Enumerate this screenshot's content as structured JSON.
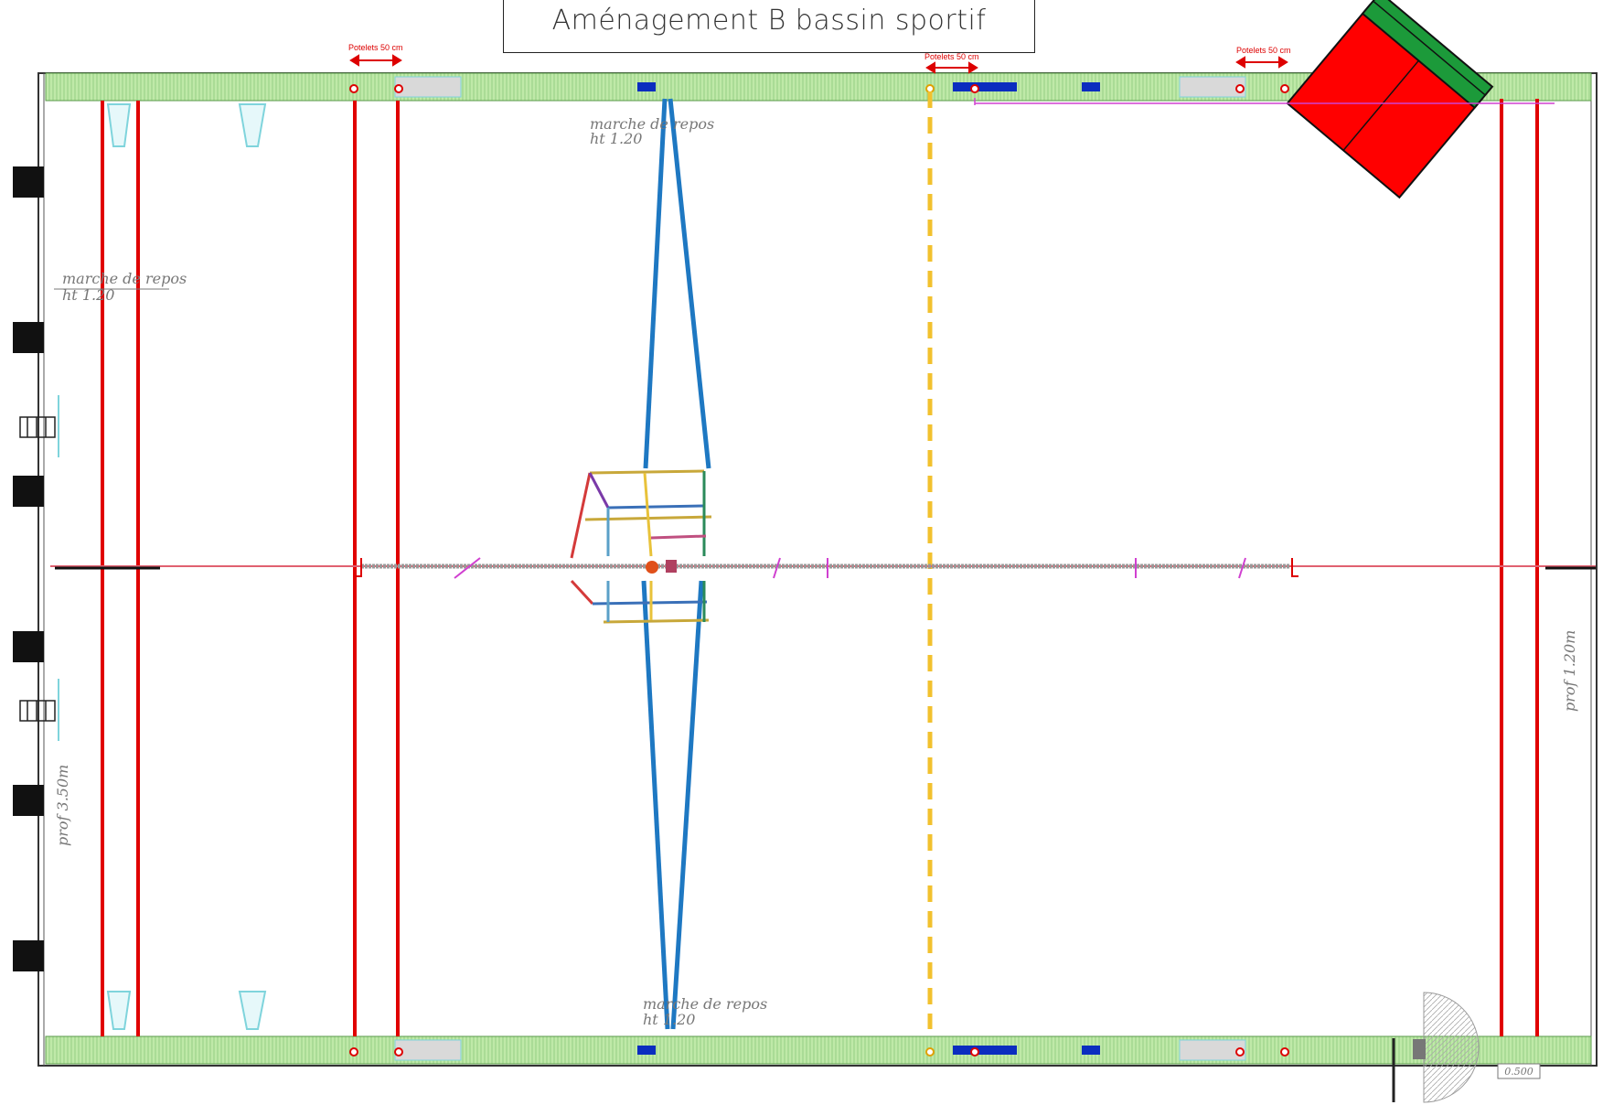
{
  "title": "Aménagement B bassin sportif",
  "annotations": {
    "rest_step_label": "marche de repos",
    "rest_step_height": "ht 1.20",
    "bollard_label": "Potelets 50 cm",
    "depth_deep": "prof 3.50m",
    "depth_shallow": "prof 1.20m",
    "scale_value": "0.500"
  },
  "colors": {
    "deck": "#b9e6a3",
    "lane_line": "#e00000",
    "center_line": "#f2c12e",
    "rope": "#1e78c2",
    "mat_red": "#ff0000",
    "mat_green": "#1c9a3a",
    "marker": "#0b2dbf"
  },
  "icons": {
    "ladder": "ladder-icon",
    "block": "starting-block-icon",
    "door": "door-swing-icon"
  }
}
